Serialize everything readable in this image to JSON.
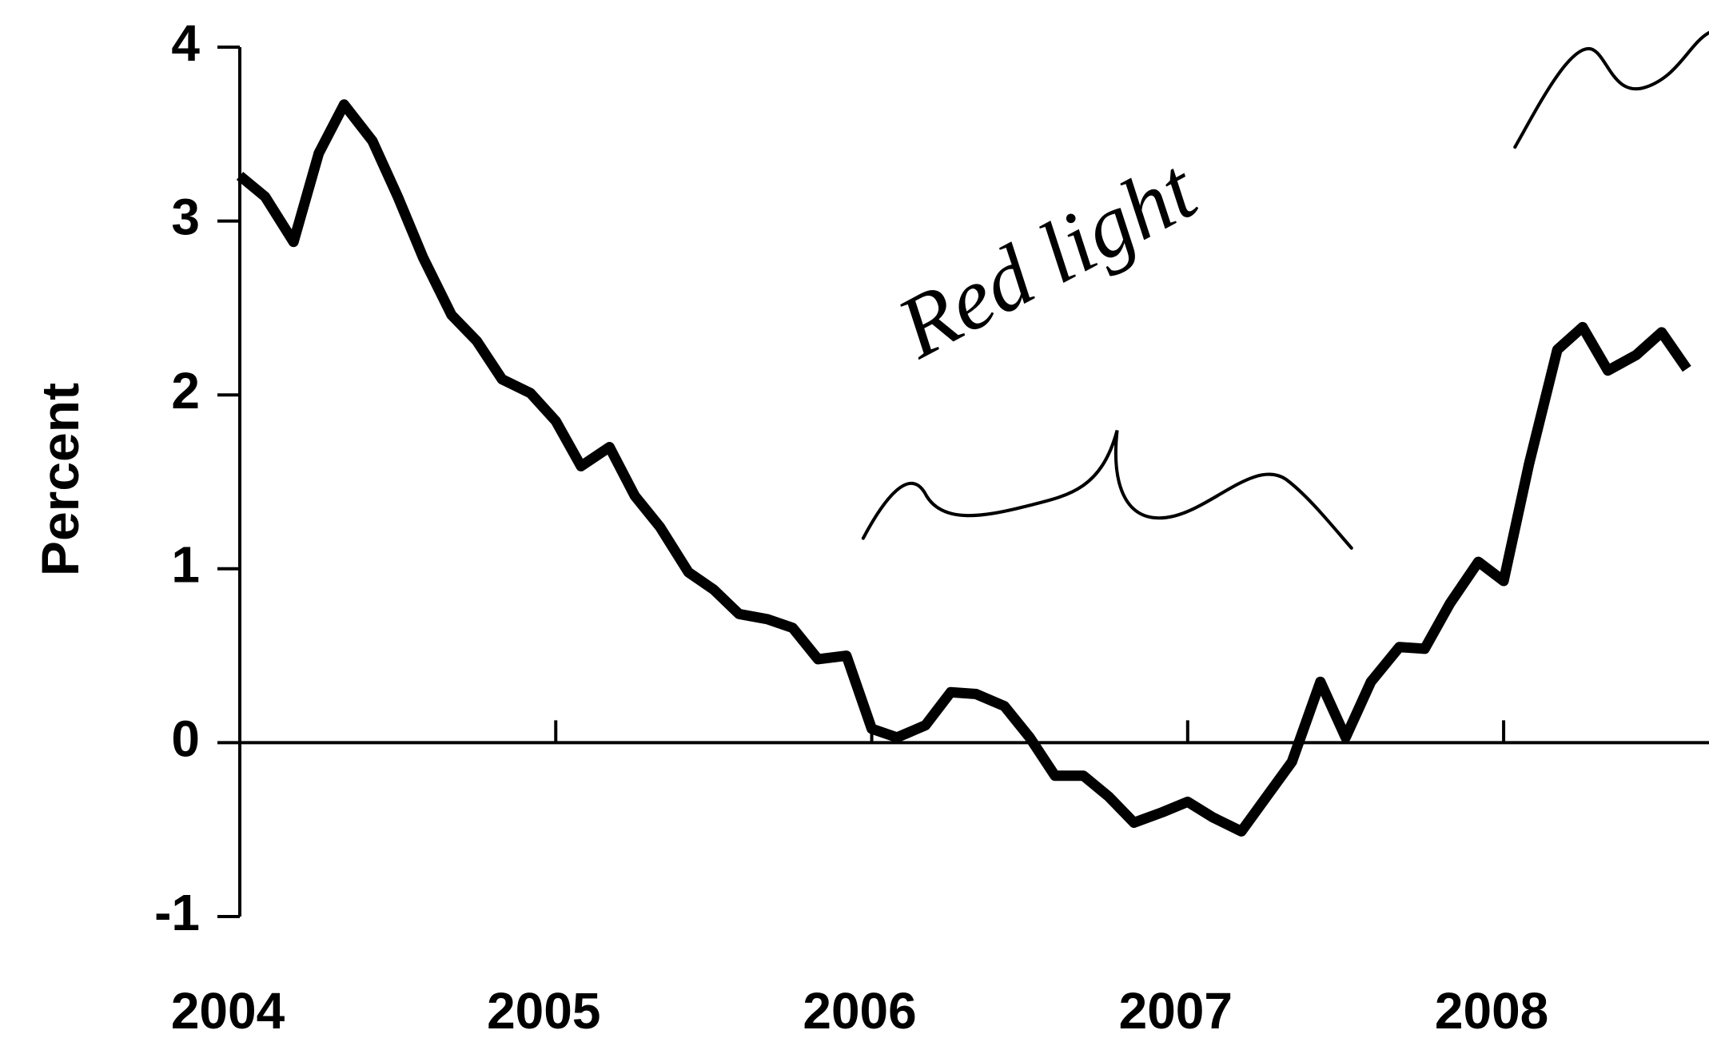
{
  "chart_data": {
    "type": "line",
    "y_label": "Percent",
    "annotation": "Red light",
    "xlim": [
      2004,
      2008.65
    ],
    "xticks": [
      2004,
      2005,
      2006,
      2007,
      2008
    ],
    "ylim": [
      -1,
      4
    ],
    "yticks": [
      -1,
      0,
      1,
      2,
      3,
      4
    ],
    "series": [
      {
        "color": "#000000",
        "x": [
          2004.0,
          2004.08,
          2004.17,
          2004.25,
          2004.33,
          2004.42,
          2004.5,
          2004.58,
          2004.67,
          2004.75,
          2004.83,
          2004.92,
          2005.0,
          2005.08,
          2005.17,
          2005.25,
          2005.33,
          2005.42,
          2005.5,
          2005.58,
          2005.67,
          2005.75,
          2005.83,
          2005.92,
          2006.0,
          2006.08,
          2006.17,
          2006.25,
          2006.33,
          2006.42,
          2006.5,
          2006.58,
          2006.67,
          2006.75,
          2006.83,
          2006.92,
          2007.0,
          2007.08,
          2007.17,
          2007.25,
          2007.33,
          2007.42,
          2007.5,
          2007.58,
          2007.67,
          2007.75,
          2007.83,
          2007.92,
          2008.0,
          2008.08,
          2008.17,
          2008.25,
          2008.33,
          2008.42,
          2008.5,
          2008.58
        ],
        "values": [
          3.26,
          3.14,
          2.88,
          3.39,
          3.67,
          3.46,
          3.14,
          2.79,
          2.46,
          2.31,
          2.09,
          2.01,
          1.85,
          1.59,
          1.7,
          1.42,
          1.24,
          0.98,
          0.88,
          0.74,
          0.71,
          0.66,
          0.48,
          0.5,
          0.08,
          0.03,
          0.1,
          0.29,
          0.28,
          0.21,
          0.03,
          -0.19,
          -0.19,
          -0.31,
          -0.46,
          -0.4,
          -0.34,
          -0.43,
          -0.51,
          -0.31,
          -0.11,
          0.35,
          0.03,
          0.35,
          0.55,
          0.54,
          0.8,
          1.04,
          0.93,
          1.6,
          2.26,
          2.39,
          2.14,
          2.23,
          2.36,
          2.15
        ]
      }
    ]
  }
}
